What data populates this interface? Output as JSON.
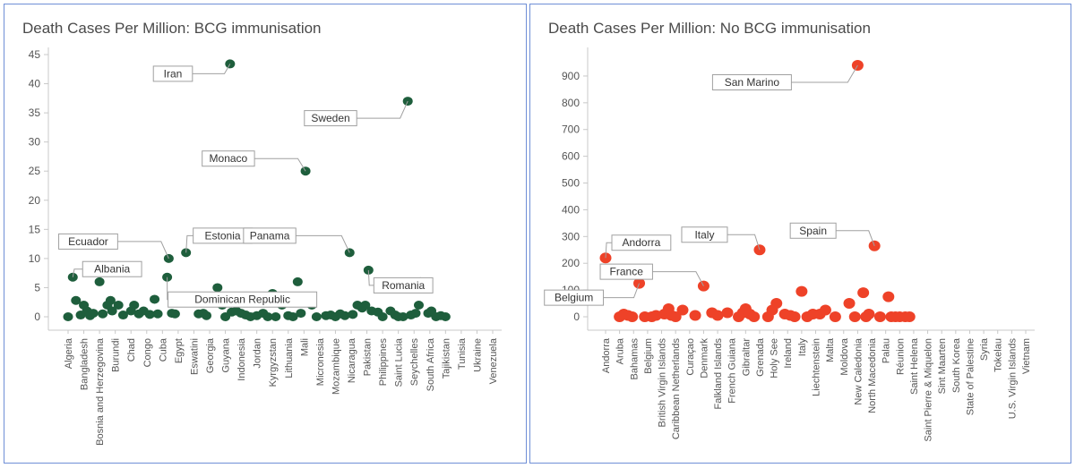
{
  "chart_data": [
    {
      "type": "scatter",
      "title": "Death Cases Per Million: BCG immunisation",
      "color": "#1e5e3c",
      "ylim": [
        0,
        45
      ],
      "yticks": [
        0,
        5,
        10,
        15,
        20,
        25,
        30,
        35,
        40,
        45
      ],
      "grid": false,
      "x_tick_labels": [
        "Algeria",
        "Bangladesh",
        "Bosnia and Herzegovina",
        "Burundi",
        "Chad",
        "Congo",
        "Cuba",
        "Egypt",
        "Eswatini",
        "Georgia",
        "Guyana",
        "Indonesia",
        "Jordan",
        "Kyrgyzstan",
        "Lithuania",
        "Mali",
        "Micronesia",
        "Mozambique",
        "Nicaragua",
        "Pakistan",
        "Philippines",
        "Saint Lucia",
        "Seychelles",
        "South Africa",
        "Tajikistan",
        "Tunisia",
        "Ukraine",
        "Venezuela"
      ],
      "points": [
        {
          "i": 0,
          "v": 0
        },
        {
          "i": 0.3,
          "v": 6.8
        },
        {
          "i": 0.5,
          "v": 2.8
        },
        {
          "i": 0.8,
          "v": 0.3
        },
        {
          "i": 1,
          "v": 2
        },
        {
          "i": 1.2,
          "v": 1
        },
        {
          "i": 1.4,
          "v": 0.2
        },
        {
          "i": 1.6,
          "v": 0.6
        },
        {
          "i": 2,
          "v": 6
        },
        {
          "i": 2.2,
          "v": 0.5
        },
        {
          "i": 2.5,
          "v": 2
        },
        {
          "i": 2.7,
          "v": 2.8
        },
        {
          "i": 2.8,
          "v": 1
        },
        {
          "i": 3.2,
          "v": 2
        },
        {
          "i": 3.5,
          "v": 0.3
        },
        {
          "i": 4,
          "v": 1
        },
        {
          "i": 4.2,
          "v": 2
        },
        {
          "i": 4.5,
          "v": 0.5
        },
        {
          "i": 4.8,
          "v": 1
        },
        {
          "i": 5.2,
          "v": 0.4
        },
        {
          "i": 5.5,
          "v": 3
        },
        {
          "i": 5.7,
          "v": 0.5
        },
        {
          "i": 6.3,
          "v": 6.8
        },
        {
          "i": 6.4,
          "v": 10
        },
        {
          "i": 6.6,
          "v": 0.6
        },
        {
          "i": 6.8,
          "v": 0.5
        },
        {
          "i": 7.5,
          "v": 11
        },
        {
          "i": 8.3,
          "v": 0.5
        },
        {
          "i": 8.6,
          "v": 0.6
        },
        {
          "i": 8.8,
          "v": 0.2
        },
        {
          "i": 9.5,
          "v": 5
        },
        {
          "i": 9.8,
          "v": 2
        },
        {
          "i": 10,
          "v": 0
        },
        {
          "i": 10.3,
          "v": 43.4
        },
        {
          "i": 10.4,
          "v": 0.8
        },
        {
          "i": 10.7,
          "v": 1
        },
        {
          "i": 11,
          "v": 0.6
        },
        {
          "i": 11.3,
          "v": 0.3
        },
        {
          "i": 11.6,
          "v": 0
        },
        {
          "i": 12,
          "v": 0.2
        },
        {
          "i": 12.4,
          "v": 0.6
        },
        {
          "i": 12.7,
          "v": 0
        },
        {
          "i": 13,
          "v": 4
        },
        {
          "i": 13.2,
          "v": 0
        },
        {
          "i": 13.6,
          "v": 2
        },
        {
          "i": 14,
          "v": 0.2
        },
        {
          "i": 14.3,
          "v": 0
        },
        {
          "i": 14.6,
          "v": 6
        },
        {
          "i": 14.8,
          "v": 0.6
        },
        {
          "i": 15.1,
          "v": 25
        },
        {
          "i": 15.4,
          "v": 3
        },
        {
          "i": 15.5,
          "v": 2
        },
        {
          "i": 15.8,
          "v": 0
        },
        {
          "i": 16.4,
          "v": 0.2
        },
        {
          "i": 16.7,
          "v": 0.3
        },
        {
          "i": 17,
          "v": 0
        },
        {
          "i": 17.3,
          "v": 0.5
        },
        {
          "i": 17.6,
          "v": 0.2
        },
        {
          "i": 17.9,
          "v": 11
        },
        {
          "i": 18.1,
          "v": 0.4
        },
        {
          "i": 18.4,
          "v": 2
        },
        {
          "i": 18.7,
          "v": 1.5
        },
        {
          "i": 18.9,
          "v": 2
        },
        {
          "i": 19.1,
          "v": 8
        },
        {
          "i": 19.3,
          "v": 1
        },
        {
          "i": 19.7,
          "v": 0.8
        },
        {
          "i": 20,
          "v": 0
        },
        {
          "i": 20.5,
          "v": 1
        },
        {
          "i": 20.8,
          "v": 0.3
        },
        {
          "i": 21,
          "v": 0
        },
        {
          "i": 21.3,
          "v": 0
        },
        {
          "i": 21.6,
          "v": 37
        },
        {
          "i": 21.8,
          "v": 0.3
        },
        {
          "i": 22.1,
          "v": 0.6
        },
        {
          "i": 22.3,
          "v": 2
        },
        {
          "i": 22.4,
          "v": 6
        },
        {
          "i": 22.9,
          "v": 0.6
        },
        {
          "i": 23.1,
          "v": 1
        },
        {
          "i": 23.4,
          "v": 0
        },
        {
          "i": 23.7,
          "v": 0.2
        },
        {
          "i": 24,
          "v": 0
        }
      ],
      "annotations": [
        {
          "text": "Iran",
          "i": 10.3,
          "v": 43.4
        },
        {
          "text": "Sweden",
          "i": 21.6,
          "v": 37
        },
        {
          "text": "Monaco",
          "i": 15.1,
          "v": 25
        },
        {
          "text": "Ecuador",
          "i": 6.4,
          "v": 10
        },
        {
          "text": "Estonia",
          "i": 7.5,
          "v": 11
        },
        {
          "text": "Panama",
          "i": 17.9,
          "v": 11
        },
        {
          "text": "Albania",
          "i": 0.3,
          "v": 6.8
        },
        {
          "text": "Romania",
          "i": 19.1,
          "v": 8
        },
        {
          "text": "Dominican Republic",
          "i": 6.3,
          "v": 6.8
        }
      ]
    },
    {
      "type": "scatter",
      "title": "Death Cases Per Million: No BCG immunisation",
      "color": "#ee4228",
      "ylim": [
        0,
        950
      ],
      "yticks": [
        0,
        100,
        200,
        300,
        400,
        500,
        600,
        700,
        800,
        900
      ],
      "grid": false,
      "x_tick_labels": [
        "Andorra",
        "Aruba",
        "Bahamas",
        "Belgium",
        "British Virgin Islands",
        "Caribbean Netherlands",
        "Curaçao",
        "Denmark",
        "Falkland Islands",
        "French Guiana",
        "Gibraltar",
        "Grenada",
        "Holy See",
        "Ireland",
        "Italy",
        "Liechtenstein",
        "Malta",
        "Moldova",
        "New Caledonia",
        "North Macedonia",
        "Palau",
        "Réunion",
        "Saint Helena",
        "Saint Pierre & Miquelon",
        "Sint Maarten",
        "South Korea",
        "State of Palestine",
        "Syria",
        "Tokelau",
        "U.S. Virgin Islands",
        "Vietnam"
      ],
      "points": [
        {
          "i": 0,
          "v": 220
        },
        {
          "i": 1,
          "v": 0
        },
        {
          "i": 1.3,
          "v": 10
        },
        {
          "i": 1.6,
          "v": 5
        },
        {
          "i": 1.9,
          "v": 0
        },
        {
          "i": 2.4,
          "v": 125
        },
        {
          "i": 2.8,
          "v": 0
        },
        {
          "i": 3.3,
          "v": 0
        },
        {
          "i": 3.6,
          "v": 5
        },
        {
          "i": 4.2,
          "v": 10
        },
        {
          "i": 4.5,
          "v": 30
        },
        {
          "i": 4.7,
          "v": 5
        },
        {
          "i": 5,
          "v": 0
        },
        {
          "i": 5.5,
          "v": 25
        },
        {
          "i": 6.4,
          "v": 5
        },
        {
          "i": 7,
          "v": 115
        },
        {
          "i": 7.6,
          "v": 15
        },
        {
          "i": 8,
          "v": 5
        },
        {
          "i": 8.7,
          "v": 15
        },
        {
          "i": 9.5,
          "v": 0
        },
        {
          "i": 9.8,
          "v": 15
        },
        {
          "i": 10,
          "v": 30
        },
        {
          "i": 10.3,
          "v": 10
        },
        {
          "i": 10.6,
          "v": 0
        },
        {
          "i": 11,
          "v": 250
        },
        {
          "i": 11.6,
          "v": 0
        },
        {
          "i": 11.9,
          "v": 25
        },
        {
          "i": 12.2,
          "v": 50
        },
        {
          "i": 12.8,
          "v": 10
        },
        {
          "i": 13.2,
          "v": 5
        },
        {
          "i": 13.5,
          "v": 0
        },
        {
          "i": 14,
          "v": 95
        },
        {
          "i": 14.4,
          "v": 0
        },
        {
          "i": 14.8,
          "v": 10
        },
        {
          "i": 15.3,
          "v": 10
        },
        {
          "i": 15.7,
          "v": 25
        },
        {
          "i": 16.4,
          "v": 0
        },
        {
          "i": 17.4,
          "v": 50
        },
        {
          "i": 17.8,
          "v": 0
        },
        {
          "i": 18,
          "v": 940
        },
        {
          "i": 18.4,
          "v": 90
        },
        {
          "i": 18.6,
          "v": 0
        },
        {
          "i": 18.8,
          "v": 10
        },
        {
          "i": 19.2,
          "v": 265
        },
        {
          "i": 19.6,
          "v": 0
        },
        {
          "i": 20.2,
          "v": 75
        },
        {
          "i": 20.4,
          "v": 0
        },
        {
          "i": 20.7,
          "v": 0
        },
        {
          "i": 21,
          "v": 0
        },
        {
          "i": 21.4,
          "v": 0
        },
        {
          "i": 21.7,
          "v": 0
        }
      ],
      "annotations": [
        {
          "text": "San Marino",
          "i": 18,
          "v": 940
        },
        {
          "text": "Andorra",
          "i": 0,
          "v": 220
        },
        {
          "text": "Belgium",
          "i": 2.4,
          "v": 125
        },
        {
          "text": "France",
          "i": 7,
          "v": 115
        },
        {
          "text": "Italy",
          "i": 11,
          "v": 250
        },
        {
          "text": "Spain",
          "i": 19.2,
          "v": 265
        }
      ]
    }
  ]
}
